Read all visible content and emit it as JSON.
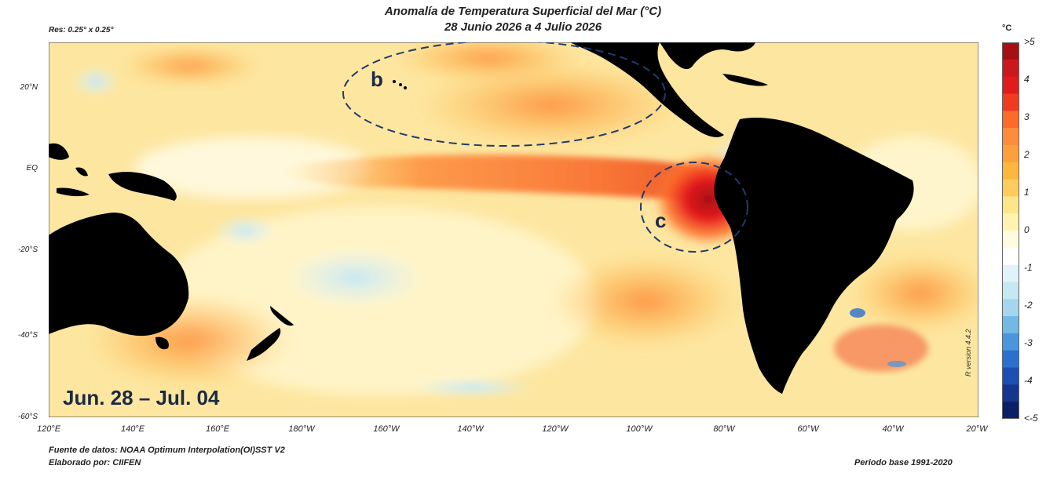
{
  "title_line1": "Anomalía de Temperatura Superficial del Mar (°C)",
  "title_line2": "28 Junio 2026 a 4 Julio 2026",
  "resolution": "Res: 0.25° x 0.25°",
  "period_label": "Jun. 28 – Jul. 04",
  "annotation_b": "b",
  "annotation_c": "c",
  "lat_labels": [
    "20°N",
    "EQ",
    "-20°S",
    "-40°S",
    "-60°S"
  ],
  "lon_labels": [
    "120°E",
    "140°E",
    "160°E",
    "180°W",
    "160°W",
    "140°W",
    "120°W",
    "100°W",
    "80°W",
    "60°W",
    "40°W",
    "20°W"
  ],
  "colorbar": {
    "unit": "°C",
    "ticks": [
      ">5",
      "4",
      "3",
      "2",
      "1",
      "0",
      "-1",
      "-2",
      "-3",
      "-4",
      "<-5"
    ],
    "colors": [
      "#a50f15",
      "#cb181d",
      "#e31a1c",
      "#f03b20",
      "#fd6a2a",
      "#fd8d3c",
      "#fda03c",
      "#fdb73c",
      "#fecc5c",
      "#fde68a",
      "#fff3b0",
      "#fffbe0",
      "#ffffff",
      "#e0f3f8",
      "#c6e8f2",
      "#a6d6ee",
      "#74b8e6",
      "#4a96de",
      "#2b6fcf",
      "#1b4fb4",
      "#15358f",
      "#0b1f66"
    ]
  },
  "source": "Fuente de datos: NOAA Optimum Interpolation(OI)SST V2",
  "elaborated": "Elaborado por: CIIFEN",
  "base_period": "Periodo base 1991-2020",
  "version": "R version 4.4.2"
}
